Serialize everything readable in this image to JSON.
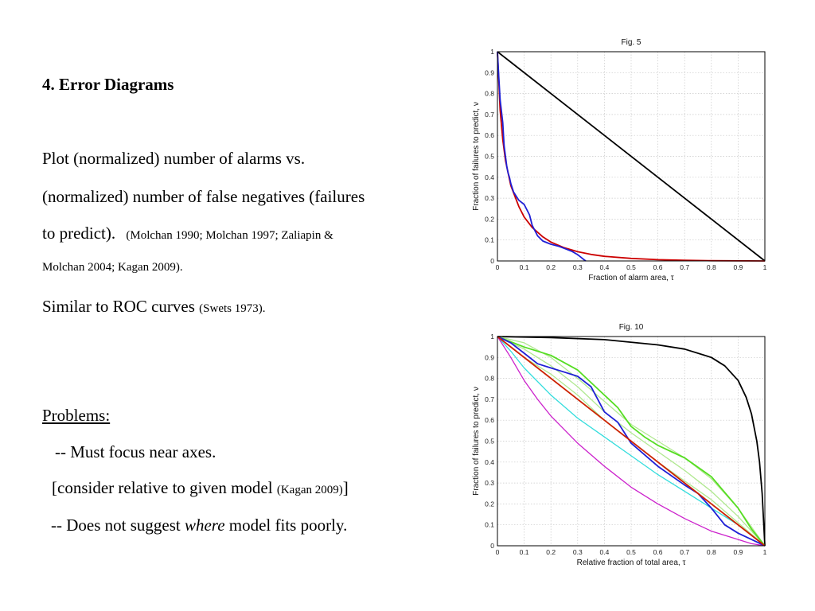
{
  "heading": "4. Error Diagrams",
  "paragraph": {
    "line1": "Plot (normalized) number of alarms vs.",
    "line2": "(normalized) number of false negatives (failures",
    "line3_main": "to predict).",
    "line3_ref": "(Molchan 1990; Molchan 1997; Zaliapin &",
    "line4_ref": "Molchan 2004; Kagan 2009)."
  },
  "similar": {
    "main": "Similar to ROC curves ",
    "ref": "(Swets 1973)."
  },
  "problems": {
    "title": "Problems:",
    "item1": "-- Must focus near axes.",
    "item2_prefix": "[consider relative to given model ",
    "item2_ref": "(Kagan 2009)",
    "item2_suffix": "]",
    "item3_prefix": "-- Does not suggest ",
    "item3_em": "where",
    "item3_suffix": " model fits poorly."
  },
  "chart_data": [
    {
      "type": "line",
      "title": "Fig. 5",
      "xlabel": "Fraction of alarm area, τ",
      "ylabel": "Fraction of failures to predict, ν",
      "xlim": [
        0,
        1
      ],
      "ylim": [
        0,
        1
      ],
      "grid": true,
      "xticks": [
        "0",
        "0.1",
        "0.2",
        "0.3",
        "0.4",
        "0.5",
        "0.6",
        "0.7",
        "0.8",
        "0.9",
        "1"
      ],
      "yticks": [
        "0",
        "0.1",
        "0.2",
        "0.3",
        "0.4",
        "0.5",
        "0.6",
        "0.7",
        "0.8",
        "0.9",
        "1"
      ],
      "series": [
        {
          "color": "#000000",
          "x": [
            0,
            1
          ],
          "y": [
            1,
            0
          ]
        },
        {
          "color": "#cc0000",
          "x": [
            0,
            0.01,
            0.02,
            0.03,
            0.05,
            0.08,
            0.1,
            0.13,
            0.17,
            0.2,
            0.25,
            0.3,
            0.35,
            0.4,
            0.5,
            0.6,
            0.7,
            0.8,
            1.0
          ],
          "y": [
            1.0,
            0.72,
            0.58,
            0.48,
            0.36,
            0.26,
            0.21,
            0.16,
            0.115,
            0.09,
            0.063,
            0.044,
            0.031,
            0.022,
            0.012,
            0.006,
            0.003,
            0.001,
            0.0
          ]
        },
        {
          "color": "#1f1fd6",
          "x": [
            0,
            0.005,
            0.01,
            0.02,
            0.025,
            0.03,
            0.035,
            0.04,
            0.045,
            0.05,
            0.06,
            0.07,
            0.08,
            0.1,
            0.12,
            0.13,
            0.15,
            0.17,
            0.2,
            0.23,
            0.25,
            0.28,
            0.3,
            0.32,
            0.33
          ],
          "y": [
            1.0,
            0.88,
            0.77,
            0.66,
            0.55,
            0.5,
            0.45,
            0.42,
            0.4,
            0.37,
            0.33,
            0.31,
            0.29,
            0.27,
            0.22,
            0.17,
            0.12,
            0.095,
            0.08,
            0.07,
            0.06,
            0.045,
            0.03,
            0.01,
            0.0
          ]
        }
      ]
    },
    {
      "type": "line",
      "title": "Fig. 10",
      "xlabel": "Relative fraction of total area, τ",
      "ylabel": "Fraction of failures to predict, ν",
      "xlim": [
        0,
        1
      ],
      "ylim": [
        0,
        1
      ],
      "grid": true,
      "xticks": [
        "0",
        "0.1",
        "0.2",
        "0.3",
        "0.4",
        "0.5",
        "0.6",
        "0.7",
        "0.8",
        "0.9",
        "1"
      ],
      "yticks": [
        "0",
        "0.1",
        "0.2",
        "0.3",
        "0.4",
        "0.5",
        "0.6",
        "0.7",
        "0.8",
        "0.9",
        "1"
      ],
      "series": [
        {
          "color": "#000000",
          "x": [
            0,
            0.2,
            0.4,
            0.6,
            0.7,
            0.8,
            0.85,
            0.9,
            0.93,
            0.95,
            0.97,
            0.98,
            0.99,
            1.0
          ],
          "y": [
            1.0,
            0.995,
            0.985,
            0.96,
            0.94,
            0.9,
            0.86,
            0.79,
            0.71,
            0.63,
            0.5,
            0.4,
            0.25,
            0.0
          ]
        },
        {
          "color": "#b0e890",
          "x": [
            0,
            0.1,
            0.2,
            0.3,
            0.4,
            0.5,
            0.6,
            0.7,
            0.8,
            0.9,
            1.0
          ],
          "y": [
            1.0,
            0.94,
            0.86,
            0.76,
            0.64,
            0.54,
            0.45,
            0.36,
            0.26,
            0.14,
            0.0
          ]
        },
        {
          "color": "#b0e890",
          "x": [
            0,
            0.1,
            0.2,
            0.3,
            0.4,
            0.5,
            0.6,
            0.7,
            0.8,
            0.9,
            1.0
          ],
          "y": [
            1.0,
            0.9,
            0.82,
            0.72,
            0.6,
            0.5,
            0.4,
            0.31,
            0.22,
            0.11,
            0.0
          ]
        },
        {
          "color": "#b0e890",
          "x": [
            0,
            0.1,
            0.2,
            0.3,
            0.4,
            0.5,
            0.6,
            0.7,
            0.8,
            0.9,
            1.0
          ],
          "y": [
            1.0,
            0.97,
            0.9,
            0.8,
            0.69,
            0.58,
            0.5,
            0.42,
            0.32,
            0.18,
            0.0
          ]
        },
        {
          "color": "#33dddd",
          "x": [
            0,
            0.05,
            0.1,
            0.2,
            0.3,
            0.4,
            0.5,
            0.6,
            0.7,
            0.8,
            0.9,
            0.95,
            1.0
          ],
          "y": [
            1.0,
            0.93,
            0.85,
            0.72,
            0.61,
            0.52,
            0.43,
            0.34,
            0.26,
            0.18,
            0.1,
            0.05,
            0.0
          ]
        },
        {
          "color": "#cc22cc",
          "x": [
            0,
            0.05,
            0.1,
            0.15,
            0.2,
            0.3,
            0.4,
            0.5,
            0.6,
            0.7,
            0.8,
            0.9,
            0.95,
            1.0
          ],
          "y": [
            1.0,
            0.9,
            0.79,
            0.7,
            0.62,
            0.49,
            0.38,
            0.28,
            0.2,
            0.13,
            0.07,
            0.03,
            0.01,
            0.0
          ]
        },
        {
          "color": "#55dd22",
          "x": [
            0,
            0.1,
            0.2,
            0.3,
            0.35,
            0.4,
            0.45,
            0.5,
            0.55,
            0.6,
            0.7,
            0.8,
            0.9,
            0.95,
            1.0
          ],
          "y": [
            1.0,
            0.95,
            0.91,
            0.84,
            0.78,
            0.72,
            0.66,
            0.57,
            0.52,
            0.48,
            0.42,
            0.33,
            0.18,
            0.08,
            0.0
          ]
        },
        {
          "color": "#1f1fd6",
          "x": [
            0,
            0.05,
            0.1,
            0.15,
            0.2,
            0.25,
            0.3,
            0.35,
            0.4,
            0.45,
            0.5,
            0.6,
            0.7,
            0.75,
            0.8,
            0.85,
            0.9,
            0.95,
            1.0
          ],
          "y": [
            1.0,
            0.97,
            0.92,
            0.87,
            0.85,
            0.83,
            0.81,
            0.76,
            0.64,
            0.59,
            0.49,
            0.38,
            0.29,
            0.25,
            0.18,
            0.1,
            0.06,
            0.03,
            0.0
          ]
        },
        {
          "color": "#cc2200",
          "x": [
            0,
            1
          ],
          "y": [
            1,
            0
          ]
        }
      ]
    }
  ]
}
